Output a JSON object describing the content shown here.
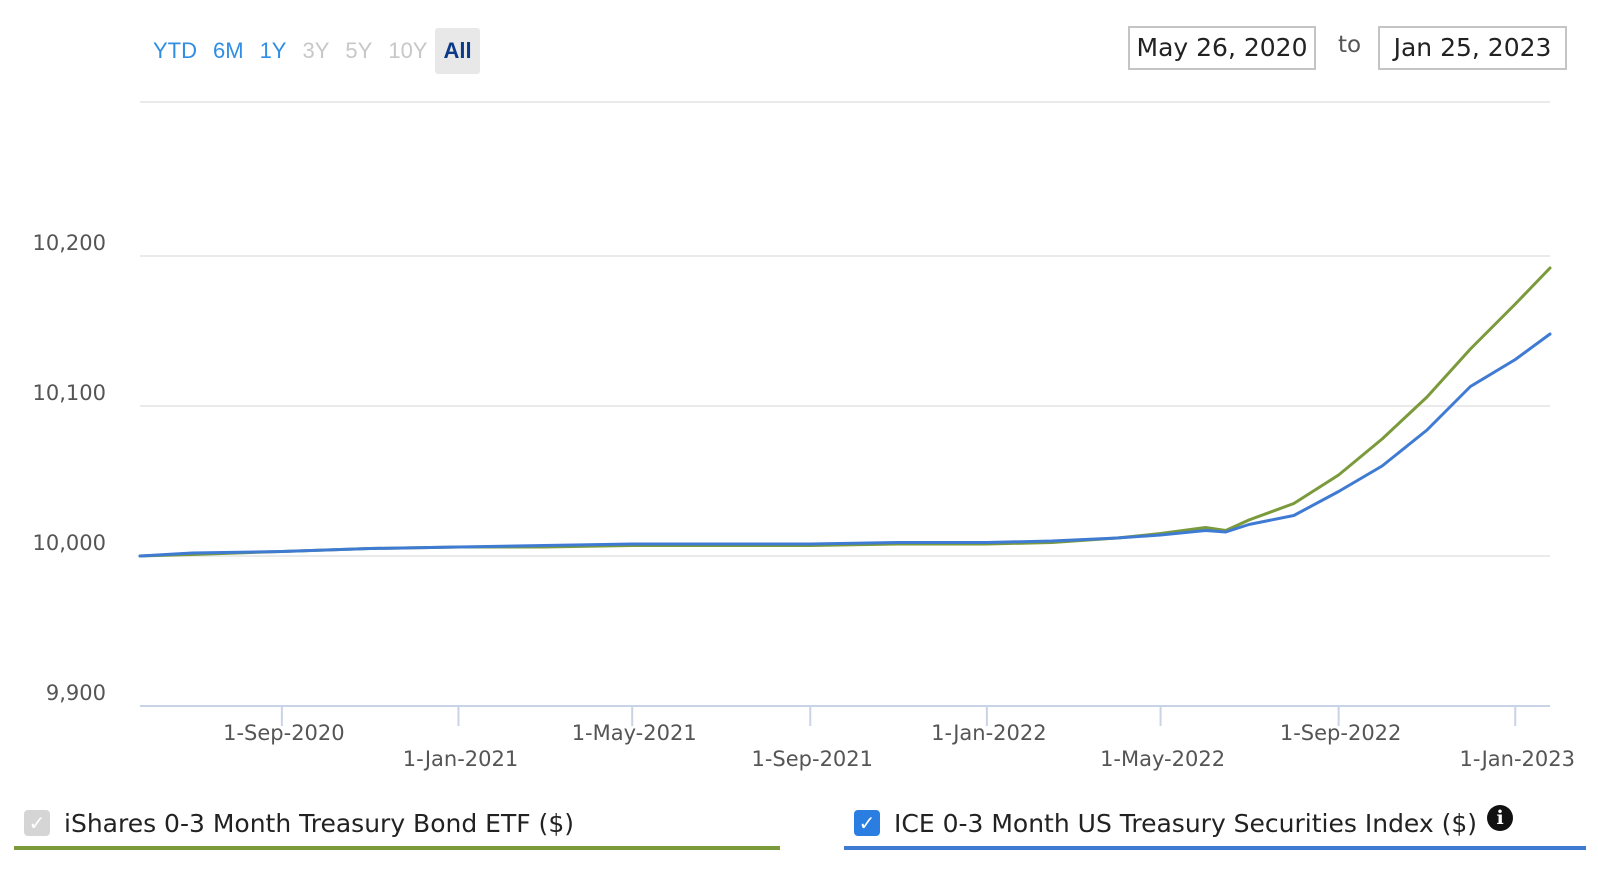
{
  "range_selector": {
    "buttons": [
      {
        "label": "YTD",
        "state": "enabled"
      },
      {
        "label": "6M",
        "state": "enabled"
      },
      {
        "label": "1Y",
        "state": "enabled"
      },
      {
        "label": "3Y",
        "state": "disabled"
      },
      {
        "label": "5Y",
        "state": "disabled"
      },
      {
        "label": "10Y",
        "state": "disabled"
      },
      {
        "label": "All",
        "state": "active"
      }
    ]
  },
  "date_range": {
    "from": "May 26, 2020",
    "separator": "to",
    "to": "Jan 25, 2023"
  },
  "legend": {
    "etf_label": "iShares 0-3 Month Treasury Bond ETF ($)",
    "index_label": "ICE 0-3 Month US Treasury Securities Index ($)",
    "etf_checked": false,
    "index_checked": true,
    "checkmark_glyph": "✓",
    "info_glyph": "i"
  },
  "colors": {
    "etf_line": "#7a9a3c",
    "index_line": "#3f7bd2",
    "grid": "#e3e3e3",
    "axis": "#c9d3e6",
    "button_blue": "#2f8de4",
    "button_active": "#0b3a8a"
  },
  "chart_data": {
    "type": "line",
    "ylim": [
      9900,
      10200
    ],
    "xlim": [
      "2020-05-26",
      "2023-01-25"
    ],
    "yticks": [
      {
        "value": 9900,
        "label": "9,900"
      },
      {
        "value": 10000,
        "label": "10,000"
      },
      {
        "value": 10100,
        "label": "10,100"
      },
      {
        "value": 10200,
        "label": "10,200"
      }
    ],
    "xticks": [
      {
        "date": "2020-09-01",
        "label": "1-Sep-2020",
        "row": 1
      },
      {
        "date": "2021-01-01",
        "label": "1-Jan-2021",
        "row": 2
      },
      {
        "date": "2021-05-01",
        "label": "1-May-2021",
        "row": 1
      },
      {
        "date": "2021-09-01",
        "label": "1-Sep-2021",
        "row": 2
      },
      {
        "date": "2022-01-01",
        "label": "1-Jan-2022",
        "row": 1
      },
      {
        "date": "2022-05-01",
        "label": "1-May-2022",
        "row": 2
      },
      {
        "date": "2022-09-01",
        "label": "1-Sep-2022",
        "row": 1
      },
      {
        "date": "2023-01-01",
        "label": "1-Jan-2023",
        "row": 2
      }
    ],
    "grid": true,
    "legend": "bottom",
    "series": [
      {
        "name": "iShares 0-3 Month Treasury Bond ETF ($)",
        "color": "#7a9a3c",
        "points": [
          [
            "2020-05-26",
            10000
          ],
          [
            "2020-07-01",
            10001
          ],
          [
            "2020-09-01",
            10003
          ],
          [
            "2020-11-01",
            10005
          ],
          [
            "2021-01-01",
            10006
          ],
          [
            "2021-03-01",
            10006
          ],
          [
            "2021-05-01",
            10007
          ],
          [
            "2021-07-01",
            10007
          ],
          [
            "2021-09-01",
            10007
          ],
          [
            "2021-11-01",
            10008
          ],
          [
            "2022-01-01",
            10008
          ],
          [
            "2022-02-15",
            10009
          ],
          [
            "2022-04-01",
            10012
          ],
          [
            "2022-05-01",
            10015
          ],
          [
            "2022-06-01",
            10019
          ],
          [
            "2022-06-15",
            10017
          ],
          [
            "2022-07-01",
            10024
          ],
          [
            "2022-08-01",
            10035
          ],
          [
            "2022-09-01",
            10054
          ],
          [
            "2022-10-01",
            10078
          ],
          [
            "2022-11-01",
            10106
          ],
          [
            "2022-12-01",
            10138
          ],
          [
            "2023-01-01",
            10168
          ],
          [
            "2023-01-25",
            10192
          ]
        ]
      },
      {
        "name": "ICE 0-3 Month US Treasury Securities Index ($)",
        "color": "#3f7bd2",
        "points": [
          [
            "2020-05-26",
            10000
          ],
          [
            "2020-07-01",
            10002
          ],
          [
            "2020-09-01",
            10003
          ],
          [
            "2020-11-01",
            10005
          ],
          [
            "2021-01-01",
            10006
          ],
          [
            "2021-03-01",
            10007
          ],
          [
            "2021-05-01",
            10008
          ],
          [
            "2021-07-01",
            10008
          ],
          [
            "2021-09-01",
            10008
          ],
          [
            "2021-11-01",
            10009
          ],
          [
            "2022-01-01",
            10009
          ],
          [
            "2022-02-15",
            10010
          ],
          [
            "2022-04-01",
            10012
          ],
          [
            "2022-05-01",
            10014
          ],
          [
            "2022-06-01",
            10017
          ],
          [
            "2022-06-15",
            10016
          ],
          [
            "2022-07-01",
            10021
          ],
          [
            "2022-08-01",
            10027
          ],
          [
            "2022-09-01",
            10043
          ],
          [
            "2022-10-01",
            10060
          ],
          [
            "2022-11-01",
            10084
          ],
          [
            "2022-12-01",
            10113
          ],
          [
            "2023-01-01",
            10131
          ],
          [
            "2023-01-25",
            10148
          ]
        ]
      }
    ]
  }
}
